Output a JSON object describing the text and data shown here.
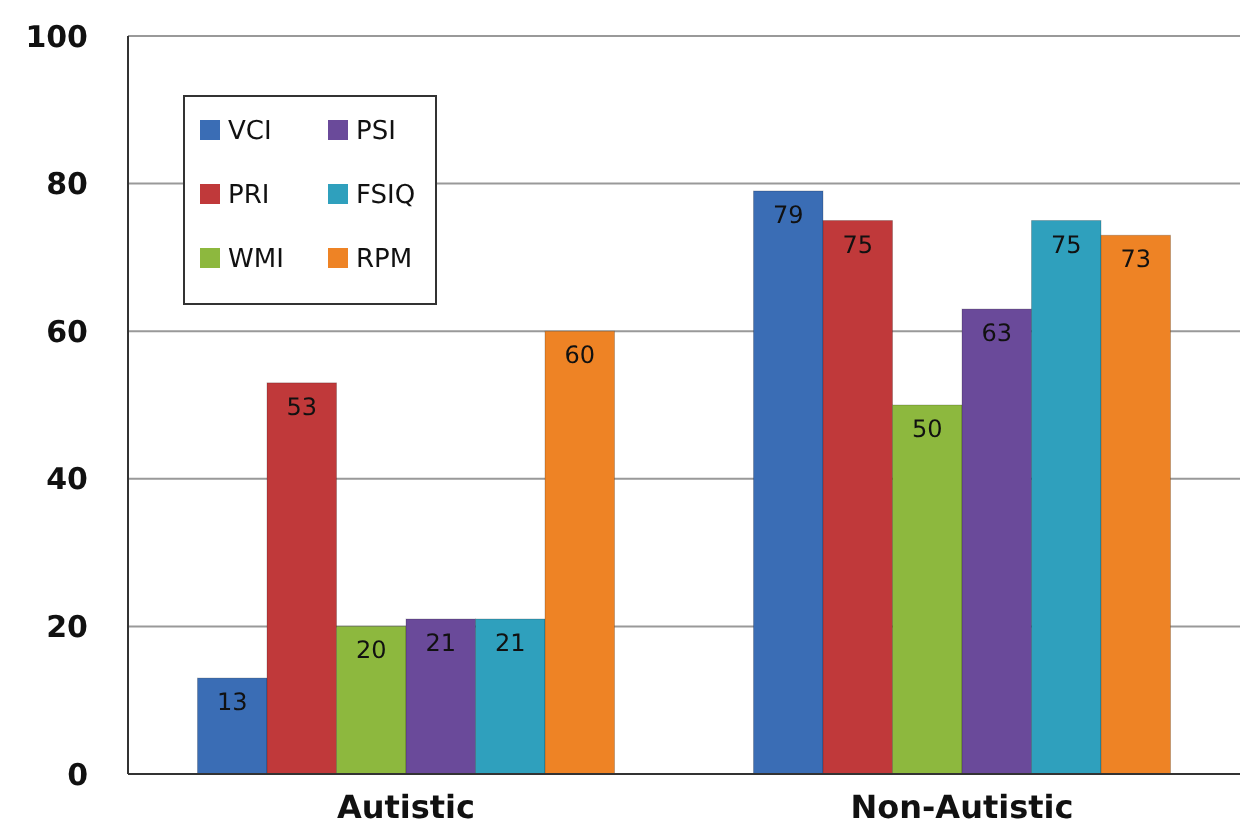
{
  "chart_data": {
    "type": "bar",
    "categories": [
      "Autistic",
      "Non-Autistic"
    ],
    "series": [
      {
        "name": "VCI",
        "color": "#3a6db5",
        "values": [
          13,
          79
        ]
      },
      {
        "name": "PRI",
        "color": "#c0393a",
        "values": [
          53,
          75
        ]
      },
      {
        "name": "WMI",
        "color": "#8db83e",
        "values": [
          20,
          50
        ]
      },
      {
        "name": "PSI",
        "color": "#6a4a9a",
        "values": [
          21,
          63
        ]
      },
      {
        "name": "FSIQ",
        "color": "#2fa0bd",
        "values": [
          21,
          75
        ]
      },
      {
        "name": "RPM",
        "color": "#ee8325",
        "values": [
          60,
          73
        ]
      }
    ],
    "ylim": [
      0,
      100
    ],
    "yticks": [
      0,
      20,
      40,
      60,
      80,
      100
    ],
    "grid": "y",
    "legend": "top left",
    "data_labels": true
  }
}
